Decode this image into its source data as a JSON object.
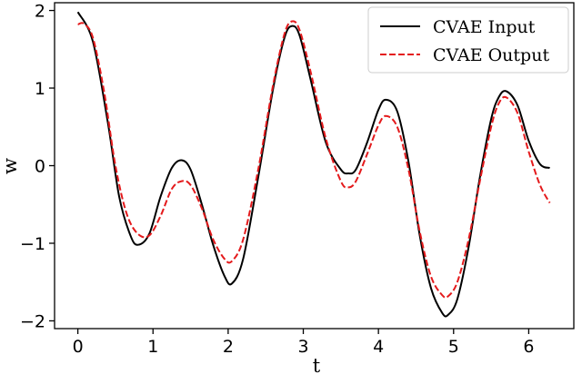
{
  "chart_data": {
    "type": "line",
    "xlabel": "t",
    "ylabel": "w",
    "xlim": [
      -0.31,
      6.6
    ],
    "ylim": [
      -2.1,
      2.1
    ],
    "x_ticks": [
      0,
      1,
      2,
      3,
      4,
      5,
      6
    ],
    "y_ticks": [
      -2,
      -1,
      0,
      1,
      2
    ],
    "x_tick_labels": [
      "0",
      "1",
      "2",
      "3",
      "4",
      "5",
      "6"
    ],
    "y_tick_labels": [
      "−2",
      "−1",
      "0",
      "1",
      "2"
    ],
    "grid": false,
    "legend_position": "top-right",
    "series": [
      {
        "name": "CVAE Input",
        "color": "#000000",
        "dash": "solid",
        "x": [
          0,
          0.2,
          0.4,
          0.55,
          0.7,
          0.8,
          0.95,
          1.1,
          1.25,
          1.38,
          1.5,
          1.65,
          1.8,
          1.95,
          2.05,
          2.2,
          2.4,
          2.6,
          2.75,
          2.85,
          2.95,
          3.1,
          3.3,
          3.5,
          3.6,
          3.7,
          3.85,
          4.0,
          4.1,
          4.25,
          4.4,
          4.55,
          4.7,
          4.85,
          4.93,
          5.05,
          5.2,
          5.35,
          5.5,
          5.6,
          5.7,
          5.85,
          6.0,
          6.15,
          6.28
        ],
        "y": [
          1.98,
          1.6,
          0.55,
          -0.4,
          -0.9,
          -1.02,
          -0.88,
          -0.4,
          -0.03,
          0.07,
          -0.05,
          -0.5,
          -1.02,
          -1.42,
          -1.52,
          -1.2,
          -0.15,
          1.0,
          1.65,
          1.8,
          1.68,
          1.1,
          0.3,
          -0.05,
          -0.1,
          -0.05,
          0.3,
          0.72,
          0.85,
          0.7,
          0.05,
          -0.9,
          -1.58,
          -1.9,
          -1.92,
          -1.72,
          -1.05,
          -0.15,
          0.6,
          0.88,
          0.96,
          0.78,
          0.32,
          0.02,
          -0.03
        ]
      },
      {
        "name": "CVAE Output",
        "color": "#e41a1c",
        "dash": "dashed",
        "x": [
          0,
          0.08,
          0.2,
          0.35,
          0.5,
          0.65,
          0.8,
          0.95,
          1.1,
          1.25,
          1.38,
          1.5,
          1.65,
          1.8,
          1.95,
          2.05,
          2.2,
          2.4,
          2.6,
          2.75,
          2.85,
          2.95,
          3.1,
          3.3,
          3.5,
          3.6,
          3.7,
          3.85,
          4.0,
          4.1,
          4.25,
          4.4,
          4.55,
          4.7,
          4.85,
          4.93,
          5.05,
          5.2,
          5.35,
          5.5,
          5.6,
          5.7,
          5.85,
          6.0,
          6.15,
          6.28
        ],
        "y": [
          1.82,
          1.83,
          1.65,
          0.95,
          0.0,
          -0.62,
          -0.88,
          -0.9,
          -0.65,
          -0.3,
          -0.2,
          -0.25,
          -0.55,
          -0.95,
          -1.2,
          -1.23,
          -0.95,
          -0.05,
          1.05,
          1.7,
          1.86,
          1.75,
          1.2,
          0.35,
          -0.2,
          -0.28,
          -0.2,
          0.15,
          0.52,
          0.64,
          0.5,
          -0.05,
          -0.85,
          -1.43,
          -1.67,
          -1.68,
          -1.5,
          -0.95,
          -0.2,
          0.5,
          0.8,
          0.88,
          0.68,
          0.18,
          -0.25,
          -0.48
        ]
      }
    ]
  }
}
